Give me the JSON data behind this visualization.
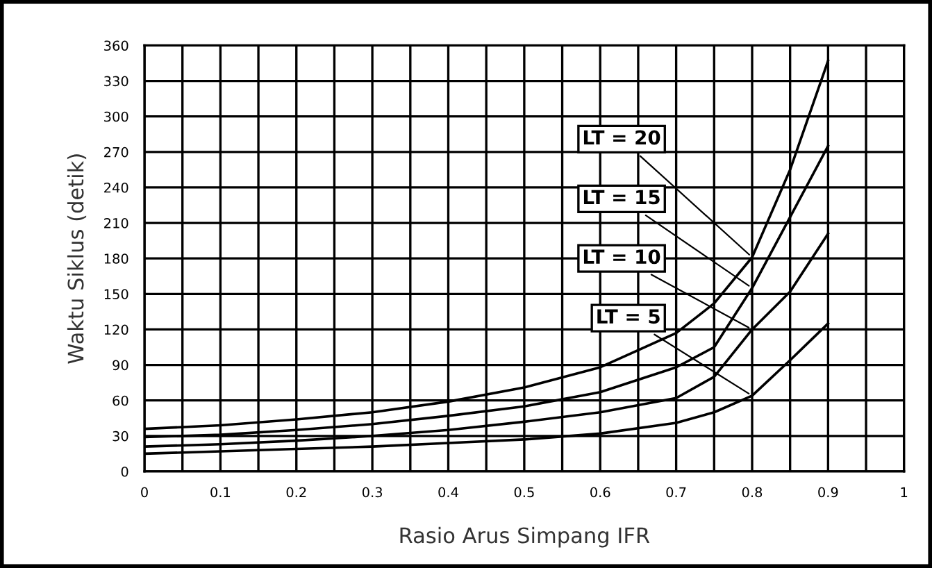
{
  "chart_data": {
    "type": "line",
    "xlabel": "Rasio Arus Simpang IFR",
    "ylabel": "Waktu Siklus (detik)",
    "x": [
      0,
      0.1,
      0.2,
      0.3,
      0.4,
      0.5,
      0.6,
      0.7,
      0.75,
      0.8,
      0.85,
      0.9
    ],
    "series": [
      {
        "name": "LT = 20",
        "color": "#000000",
        "values": [
          36,
          39,
          44,
          50,
          59,
          71,
          88,
          117,
          142,
          181,
          255,
          347
        ]
      },
      {
        "name": "LT = 15",
        "color": "#000000",
        "values": [
          29,
          31,
          35,
          40,
          47,
          55,
          67,
          88,
          105,
          155,
          215,
          275
        ]
      },
      {
        "name": "LT = 10",
        "color": "#000000",
        "values": [
          21,
          23,
          26,
          30,
          35,
          42,
          50,
          62,
          80,
          120,
          152,
          201
        ]
      },
      {
        "name": "LT = 5",
        "color": "#000000",
        "values": [
          15,
          17,
          19,
          21,
          24,
          27,
          32,
          41,
          50,
          64,
          94,
          125
        ]
      }
    ],
    "xlim": [
      0,
      1
    ],
    "ylim": [
      0,
      360
    ],
    "xticks": [
      0,
      {
        "value": 0.05,
        "label": null
      },
      0.1,
      {
        "value": 0.15,
        "label": null
      },
      0.2,
      {
        "value": 0.25,
        "label": null
      },
      0.3,
      {
        "value": 0.35,
        "label": null
      },
      0.4,
      {
        "value": 0.45,
        "label": null
      },
      0.5,
      {
        "value": 0.55,
        "label": null
      },
      0.6,
      {
        "value": 0.65,
        "label": null
      },
      0.7,
      {
        "value": 0.75,
        "label": null
      },
      0.8,
      {
        "value": 0.85,
        "label": null
      },
      0.9,
      {
        "value": 0.95,
        "label": null
      },
      1
    ],
    "yticks": [
      0,
      30,
      60,
      90,
      120,
      150,
      180,
      210,
      240,
      270,
      300,
      330,
      360
    ],
    "grid": true,
    "legend": false,
    "marker": "none",
    "line_style": "solid"
  }
}
